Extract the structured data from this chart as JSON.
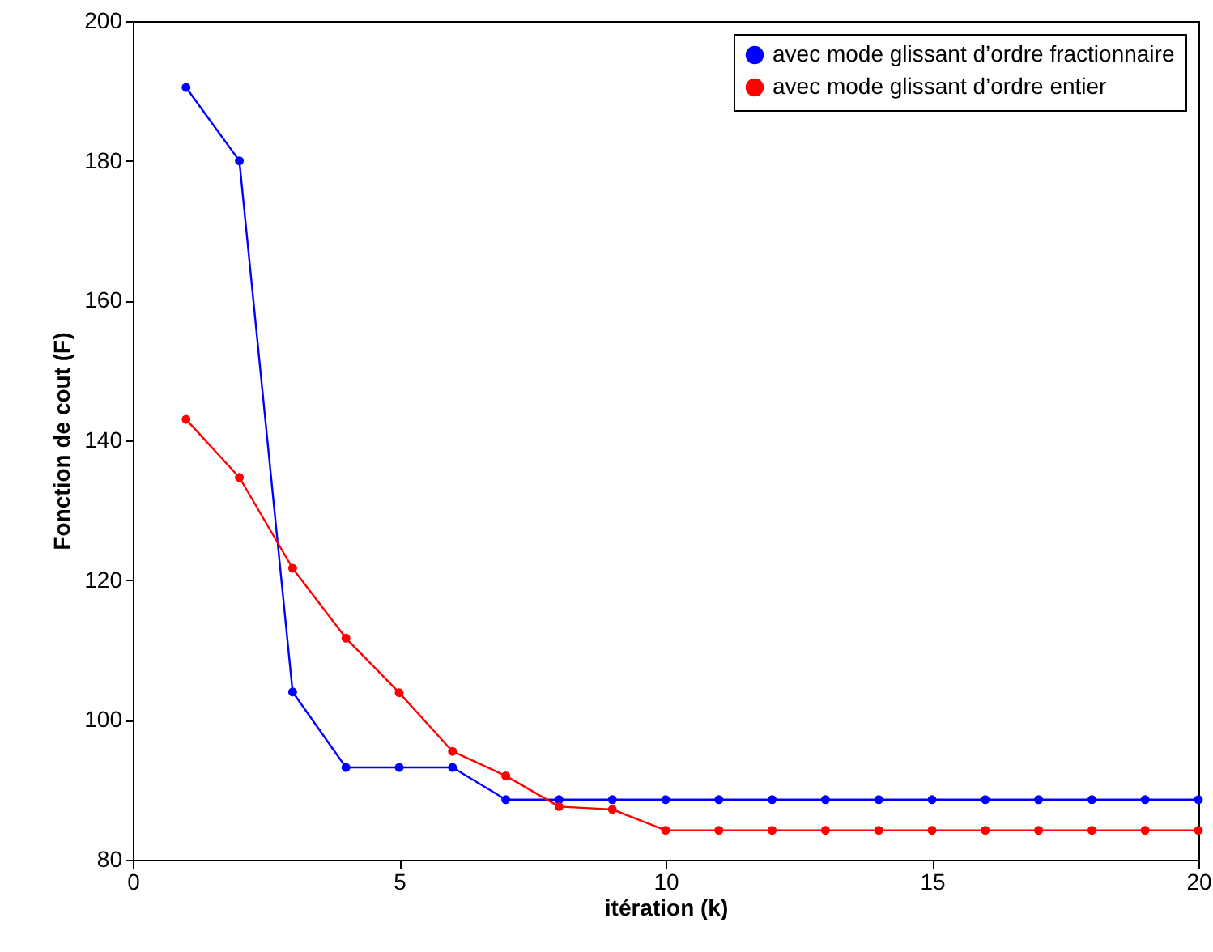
{
  "chart_data": {
    "type": "line",
    "xlabel": "itération (k)",
    "ylabel": "Fonction de cout (F)",
    "x": [
      1,
      2,
      3,
      4,
      5,
      6,
      7,
      8,
      9,
      10,
      11,
      12,
      13,
      14,
      15,
      16,
      17,
      18,
      19,
      20
    ],
    "series": [
      {
        "name": "avec mode glissant d’ordre fractionnaire",
        "color": "#0000ff",
        "values": [
          190.5,
          180,
          104,
          93.2,
          93.2,
          93.2,
          88.6,
          88.6,
          88.6,
          88.6,
          88.6,
          88.6,
          88.6,
          88.6,
          88.6,
          88.6,
          88.6,
          88.6,
          88.6,
          88.6
        ]
      },
      {
        "name": "avec mode glissant d’ordre entier",
        "color": "#ff0000",
        "values": [
          143,
          134.7,
          121.7,
          111.7,
          103.9,
          95.5,
          92,
          87.6,
          87.2,
          84.2,
          84.2,
          84.2,
          84.2,
          84.2,
          84.2,
          84.2,
          84.2,
          84.2,
          84.2,
          84.2
        ]
      }
    ],
    "xlim": [
      0,
      20
    ],
    "xticks": [
      0,
      5,
      10,
      15,
      20
    ],
    "ylim": [
      80,
      200
    ],
    "yticks": [
      80,
      100,
      120,
      140,
      160,
      180,
      200
    ],
    "grid": false,
    "legend": "top right",
    "marker": "circle",
    "line_style": "solid"
  }
}
